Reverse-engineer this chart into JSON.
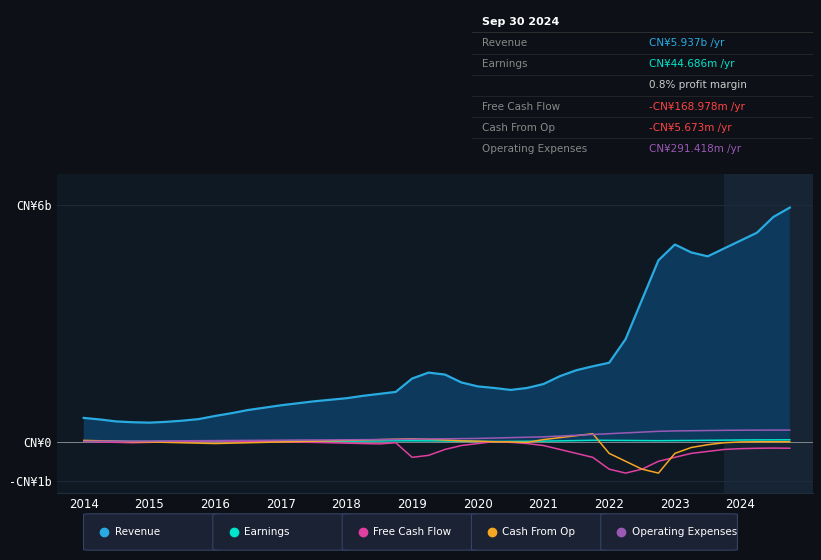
{
  "bg_color": "#0d1117",
  "chart_bg": "#0f1923",
  "grid_color": "#1e2d3d",
  "ylabel_top": "CN¥6b",
  "ylabel_mid": "CN¥0",
  "ylabel_bot": "-CN¥1b",
  "ylim": [
    -1300000000.0,
    6800000000.0
  ],
  "yticks": [
    6000000000.0,
    0,
    -1000000000.0
  ],
  "xlim": [
    2013.6,
    2025.1
  ],
  "years": [
    2014.0,
    2014.25,
    2014.5,
    2014.75,
    2015.0,
    2015.25,
    2015.5,
    2015.75,
    2016.0,
    2016.25,
    2016.5,
    2016.75,
    2017.0,
    2017.25,
    2017.5,
    2017.75,
    2018.0,
    2018.25,
    2018.5,
    2018.75,
    2019.0,
    2019.25,
    2019.5,
    2019.75,
    2020.0,
    2020.25,
    2020.5,
    2020.75,
    2021.0,
    2021.25,
    2021.5,
    2021.75,
    2022.0,
    2022.25,
    2022.5,
    2022.75,
    2023.0,
    2023.25,
    2023.5,
    2023.75,
    2024.0,
    2024.25,
    2024.5,
    2024.75
  ],
  "revenue": [
    600000000.0,
    560000000.0,
    510000000.0,
    490000000.0,
    480000000.0,
    500000000.0,
    530000000.0,
    570000000.0,
    650000000.0,
    720000000.0,
    800000000.0,
    860000000.0,
    920000000.0,
    970000000.0,
    1020000000.0,
    1060000000.0,
    1100000000.0,
    1160000000.0,
    1210000000.0,
    1260000000.0,
    1600000000.0,
    1750000000.0,
    1700000000.0,
    1500000000.0,
    1400000000.0,
    1360000000.0,
    1310000000.0,
    1360000000.0,
    1460000000.0,
    1660000000.0,
    1810000000.0,
    1910000000.0,
    2000000000.0,
    2600000000.0,
    3600000000.0,
    4600000000.0,
    5000000000.0,
    4800000000.0,
    4700000000.0,
    4900000000.0,
    5100000000.0,
    5300000000.0,
    5700000000.0,
    5937000000.0
  ],
  "earnings": [
    20000000.0,
    15000000.0,
    10000000.0,
    5000000.0,
    0,
    5000000.0,
    10000000.0,
    12000000.0,
    15000000.0,
    18000000.0,
    20000000.0,
    18000000.0,
    15000000.0,
    12000000.0,
    10000000.0,
    8000000.0,
    10000000.0,
    12000000.0,
    15000000.0,
    18000000.0,
    20000000.0,
    18000000.0,
    15000000.0,
    10000000.0,
    5000000.0,
    2000000.0,
    5000000.0,
    8000000.0,
    12000000.0,
    18000000.0,
    25000000.0,
    32000000.0,
    30000000.0,
    28000000.0,
    25000000.0,
    22000000.0,
    25000000.0,
    28000000.0,
    32000000.0,
    36000000.0,
    40000000.0,
    42000000.0,
    43000000.0,
    44686000.0
  ],
  "free_cash_flow": [
    5000000.0,
    -10000000.0,
    -20000000.0,
    -30000000.0,
    -20000000.0,
    -10000000.0,
    0,
    10000000.0,
    15000000.0,
    10000000.0,
    5000000.0,
    -5000000.0,
    -10000000.0,
    -15000000.0,
    -20000000.0,
    -30000000.0,
    -40000000.0,
    -50000000.0,
    -60000000.0,
    -30000000.0,
    -400000000.0,
    -350000000.0,
    -200000000.0,
    -100000000.0,
    -50000000.0,
    0,
    -20000000.0,
    -50000000.0,
    -100000000.0,
    -200000000.0,
    -300000000.0,
    -400000000.0,
    -700000000.0,
    -800000000.0,
    -700000000.0,
    -500000000.0,
    -400000000.0,
    -300000000.0,
    -250000000.0,
    -200000000.0,
    -180000000.0,
    -170000000.0,
    -165000000.0,
    -168978000.0
  ],
  "cash_from_op": [
    30000000.0,
    20000000.0,
    10000000.0,
    -5000000.0,
    -10000000.0,
    -20000000.0,
    -30000000.0,
    -40000000.0,
    -50000000.0,
    -40000000.0,
    -30000000.0,
    -20000000.0,
    -10000000.0,
    0,
    10000000.0,
    20000000.0,
    30000000.0,
    40000000.0,
    50000000.0,
    60000000.0,
    70000000.0,
    60000000.0,
    40000000.0,
    20000000.0,
    10000000.0,
    -5000000.0,
    -10000000.0,
    -20000000.0,
    50000000.0,
    100000000.0,
    150000000.0,
    200000000.0,
    -300000000.0,
    -500000000.0,
    -700000000.0,
    -800000000.0,
    -300000000.0,
    -150000000.0,
    -80000000.0,
    -30000000.0,
    -10000000.0,
    -5000000.0,
    -5000000.0,
    -5673000.0
  ],
  "op_expenses": [
    5000000.0,
    8000000.0,
    10000000.0,
    12000000.0,
    15000000.0,
    18000000.0,
    20000000.0,
    22000000.0,
    25000000.0,
    28000000.0,
    30000000.0,
    32000000.0,
    35000000.0,
    38000000.0,
    40000000.0,
    42000000.0,
    45000000.0,
    48000000.0,
    50000000.0,
    55000000.0,
    60000000.0,
    65000000.0,
    70000000.0,
    75000000.0,
    80000000.0,
    90000000.0,
    100000000.0,
    110000000.0,
    120000000.0,
    140000000.0,
    160000000.0,
    180000000.0,
    200000000.0,
    220000000.0,
    240000000.0,
    260000000.0,
    270000000.0,
    275000000.0,
    280000000.0,
    285000000.0,
    288000000.0,
    290000000.0,
    291000000.0,
    291418000.0
  ],
  "revenue_color": "#29abe2",
  "revenue_fill": "#0d3a5c",
  "earnings_color": "#00e5cc",
  "free_cash_flow_color": "#e040a0",
  "cash_from_op_color": "#f5a623",
  "op_expenses_color": "#9b59b6",
  "highlight_x_start": 2023.75,
  "highlight_color": "#1a2a3a",
  "xticks": [
    2014,
    2015,
    2016,
    2017,
    2018,
    2019,
    2020,
    2021,
    2022,
    2023,
    2024
  ],
  "info_box": {
    "date": "Sep 30 2024",
    "rows": [
      {
        "label": "Revenue",
        "val": "CN¥5.937b /yr",
        "label_color": "#888888",
        "val_color": "#29abe2"
      },
      {
        "label": "Earnings",
        "val": "CN¥44.686m /yr",
        "label_color": "#888888",
        "val_color": "#00e5cc"
      },
      {
        "label": "",
        "val": "0.8% profit margin",
        "label_color": "#888888",
        "val_color": "#cccccc"
      },
      {
        "label": "Free Cash Flow",
        "val": "-CN¥168.978m /yr",
        "label_color": "#888888",
        "val_color": "#ff4444"
      },
      {
        "label": "Cash From Op",
        "val": "-CN¥5.673m /yr",
        "label_color": "#888888",
        "val_color": "#ff4444"
      },
      {
        "label": "Operating Expenses",
        "val": "CN¥291.418m /yr",
        "label_color": "#888888",
        "val_color": "#9b59b6"
      }
    ]
  },
  "legend": [
    {
      "label": "Revenue",
      "color": "#29abe2"
    },
    {
      "label": "Earnings",
      "color": "#00e5cc"
    },
    {
      "label": "Free Cash Flow",
      "color": "#e040a0"
    },
    {
      "label": "Cash From Op",
      "color": "#f5a623"
    },
    {
      "label": "Operating Expenses",
      "color": "#9b59b6"
    }
  ]
}
